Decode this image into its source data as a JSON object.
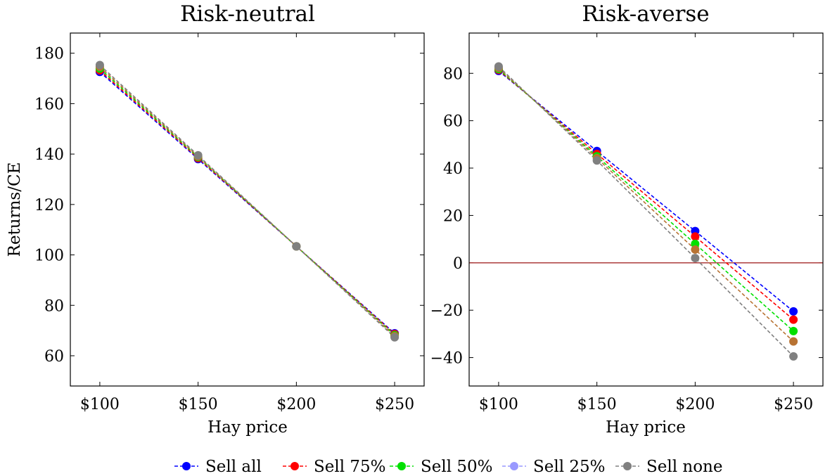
{
  "chart_data": [
    {
      "type": "line",
      "title": "Risk-neutral",
      "xlabel": "Hay price",
      "ylabel": "Returns/CE",
      "categories": [
        "$100",
        "$150",
        "$200",
        "$250"
      ],
      "x": [
        100,
        150,
        200,
        250
      ],
      "xlim": [
        85,
        265
      ],
      "ylim": [
        48,
        188
      ],
      "yticks": [
        60,
        80,
        100,
        120,
        140,
        160,
        180
      ],
      "grid": false,
      "series": [
        {
          "name": "Sell all",
          "color": "#0000ff",
          "values": [
            172.6,
            138.0,
            103.4,
            68.9
          ]
        },
        {
          "name": "Sell 75%",
          "color": "#ff0000",
          "values": [
            173.2,
            138.4,
            103.4,
            68.6
          ]
        },
        {
          "name": "Sell 50%",
          "color": "#00e000",
          "values": [
            173.9,
            138.8,
            103.4,
            68.2
          ]
        },
        {
          "name": "Sell 25%",
          "color": "#b87333",
          "values": [
            174.6,
            139.1,
            103.4,
            67.8
          ]
        },
        {
          "name": "Sell none",
          "color": "#808080",
          "values": [
            175.3,
            139.5,
            103.4,
            67.3
          ]
        }
      ]
    },
    {
      "type": "line",
      "title": "Risk-averse",
      "xlabel": "Hay price",
      "ylabel": "",
      "categories": [
        "$100",
        "$150",
        "$200",
        "$250"
      ],
      "x": [
        100,
        150,
        200,
        250
      ],
      "xlim": [
        85,
        265
      ],
      "ylim": [
        -52,
        97
      ],
      "yticks": [
        -40,
        -20,
        0,
        20,
        40,
        60,
        80
      ],
      "grid": false,
      "reference_line": {
        "y": 0,
        "color": "#a52a2a"
      },
      "series": [
        {
          "name": "Sell all",
          "color": "#0000ff",
          "values": [
            81.0,
            47.2,
            13.4,
            -20.5
          ]
        },
        {
          "name": "Sell 75%",
          "color": "#ff0000",
          "values": [
            81.4,
            46.0,
            11.1,
            -24.0
          ]
        },
        {
          "name": "Sell 50%",
          "color": "#00e000",
          "values": [
            81.8,
            45.0,
            8.0,
            -28.8
          ]
        },
        {
          "name": "Sell 25%",
          "color": "#b87333",
          "values": [
            82.3,
            44.2,
            5.6,
            -33.2
          ]
        },
        {
          "name": "Sell none",
          "color": "#808080",
          "values": [
            82.9,
            43.2,
            2.0,
            -39.5
          ]
        }
      ]
    }
  ],
  "legend": {
    "placement": "bottom-center",
    "entries": [
      {
        "label": "Sell all",
        "color": "#0000ff"
      },
      {
        "label": "Sell 75%",
        "color": "#ff0000"
      },
      {
        "label": "Sell 50%",
        "color": "#00e000"
      },
      {
        "label": "Sell 25%",
        "color": "#9999ff"
      },
      {
        "label": "Sell none",
        "color": "#808080"
      }
    ]
  }
}
